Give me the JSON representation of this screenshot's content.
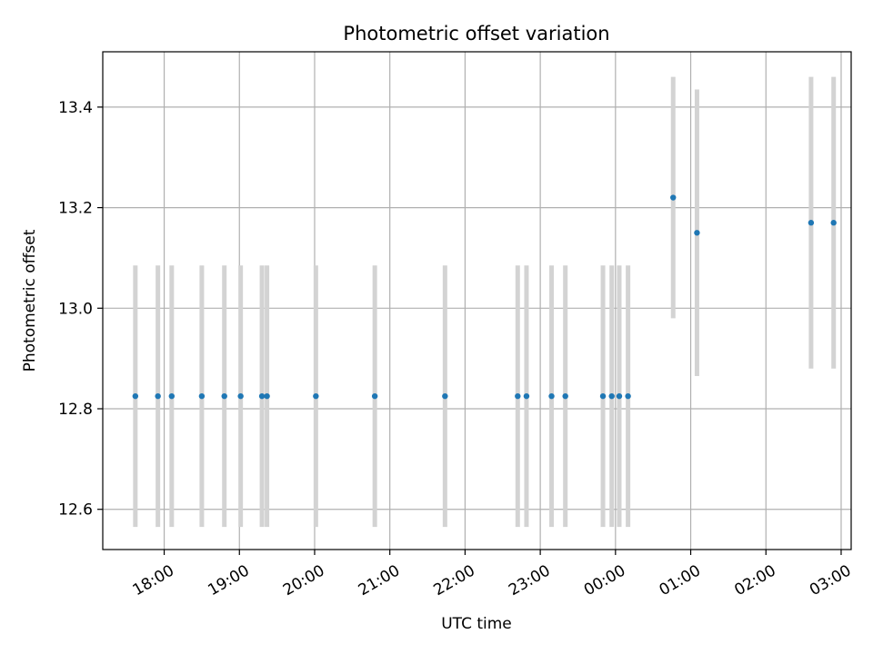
{
  "chart_data": {
    "type": "scatter",
    "title": "Photometric offset variation",
    "xlabel": "UTC time",
    "ylabel": "Photometric offset",
    "grid": true,
    "xlim": [
      "17:11",
      "03:08"
    ],
    "ylim": [
      12.52,
      13.51
    ],
    "x_ticks": [
      "18:00",
      "19:00",
      "20:00",
      "21:00",
      "22:00",
      "23:00",
      "00:00",
      "01:00",
      "02:00",
      "03:00"
    ],
    "y_ticks": [
      "12.6",
      "12.8",
      "13.0",
      "13.2",
      "13.4"
    ],
    "marker_color": "#1f77b4",
    "errorbar_color": "#d3d3d3",
    "points": [
      {
        "x": "17:37",
        "y": 12.825,
        "lo": 12.565,
        "hi": 13.085
      },
      {
        "x": "17:55",
        "y": 12.825,
        "lo": 12.565,
        "hi": 13.085
      },
      {
        "x": "18:06",
        "y": 12.825,
        "lo": 12.565,
        "hi": 13.085
      },
      {
        "x": "18:30",
        "y": 12.825,
        "lo": 12.565,
        "hi": 13.085
      },
      {
        "x": "18:48",
        "y": 12.825,
        "lo": 12.565,
        "hi": 13.085
      },
      {
        "x": "19:01",
        "y": 12.825,
        "lo": 12.565,
        "hi": 13.085
      },
      {
        "x": "19:18",
        "y": 12.825,
        "lo": 12.565,
        "hi": 13.085
      },
      {
        "x": "19:22",
        "y": 12.825,
        "lo": 12.565,
        "hi": 13.085
      },
      {
        "x": "20:01",
        "y": 12.825,
        "lo": 12.565,
        "hi": 13.085
      },
      {
        "x": "20:48",
        "y": 12.825,
        "lo": 12.565,
        "hi": 13.085
      },
      {
        "x": "21:44",
        "y": 12.825,
        "lo": 12.565,
        "hi": 13.085
      },
      {
        "x": "22:42",
        "y": 12.825,
        "lo": 12.565,
        "hi": 13.085
      },
      {
        "x": "22:49",
        "y": 12.825,
        "lo": 12.565,
        "hi": 13.085
      },
      {
        "x": "23:09",
        "y": 12.825,
        "lo": 12.565,
        "hi": 13.085
      },
      {
        "x": "23:20",
        "y": 12.825,
        "lo": 12.565,
        "hi": 13.085
      },
      {
        "x": "23:50",
        "y": 12.825,
        "lo": 12.565,
        "hi": 13.085
      },
      {
        "x": "23:57",
        "y": 12.825,
        "lo": 12.565,
        "hi": 13.085
      },
      {
        "x": "00:03",
        "y": 12.825,
        "lo": 12.565,
        "hi": 13.085
      },
      {
        "x": "00:10",
        "y": 12.825,
        "lo": 12.565,
        "hi": 13.085
      },
      {
        "x": "00:46",
        "y": 13.22,
        "lo": 12.98,
        "hi": 13.46
      },
      {
        "x": "01:05",
        "y": 13.15,
        "lo": 12.865,
        "hi": 13.435
      },
      {
        "x": "02:36",
        "y": 13.17,
        "lo": 12.88,
        "hi": 13.46
      },
      {
        "x": "02:54",
        "y": 13.17,
        "lo": 12.88,
        "hi": 13.46
      }
    ]
  }
}
